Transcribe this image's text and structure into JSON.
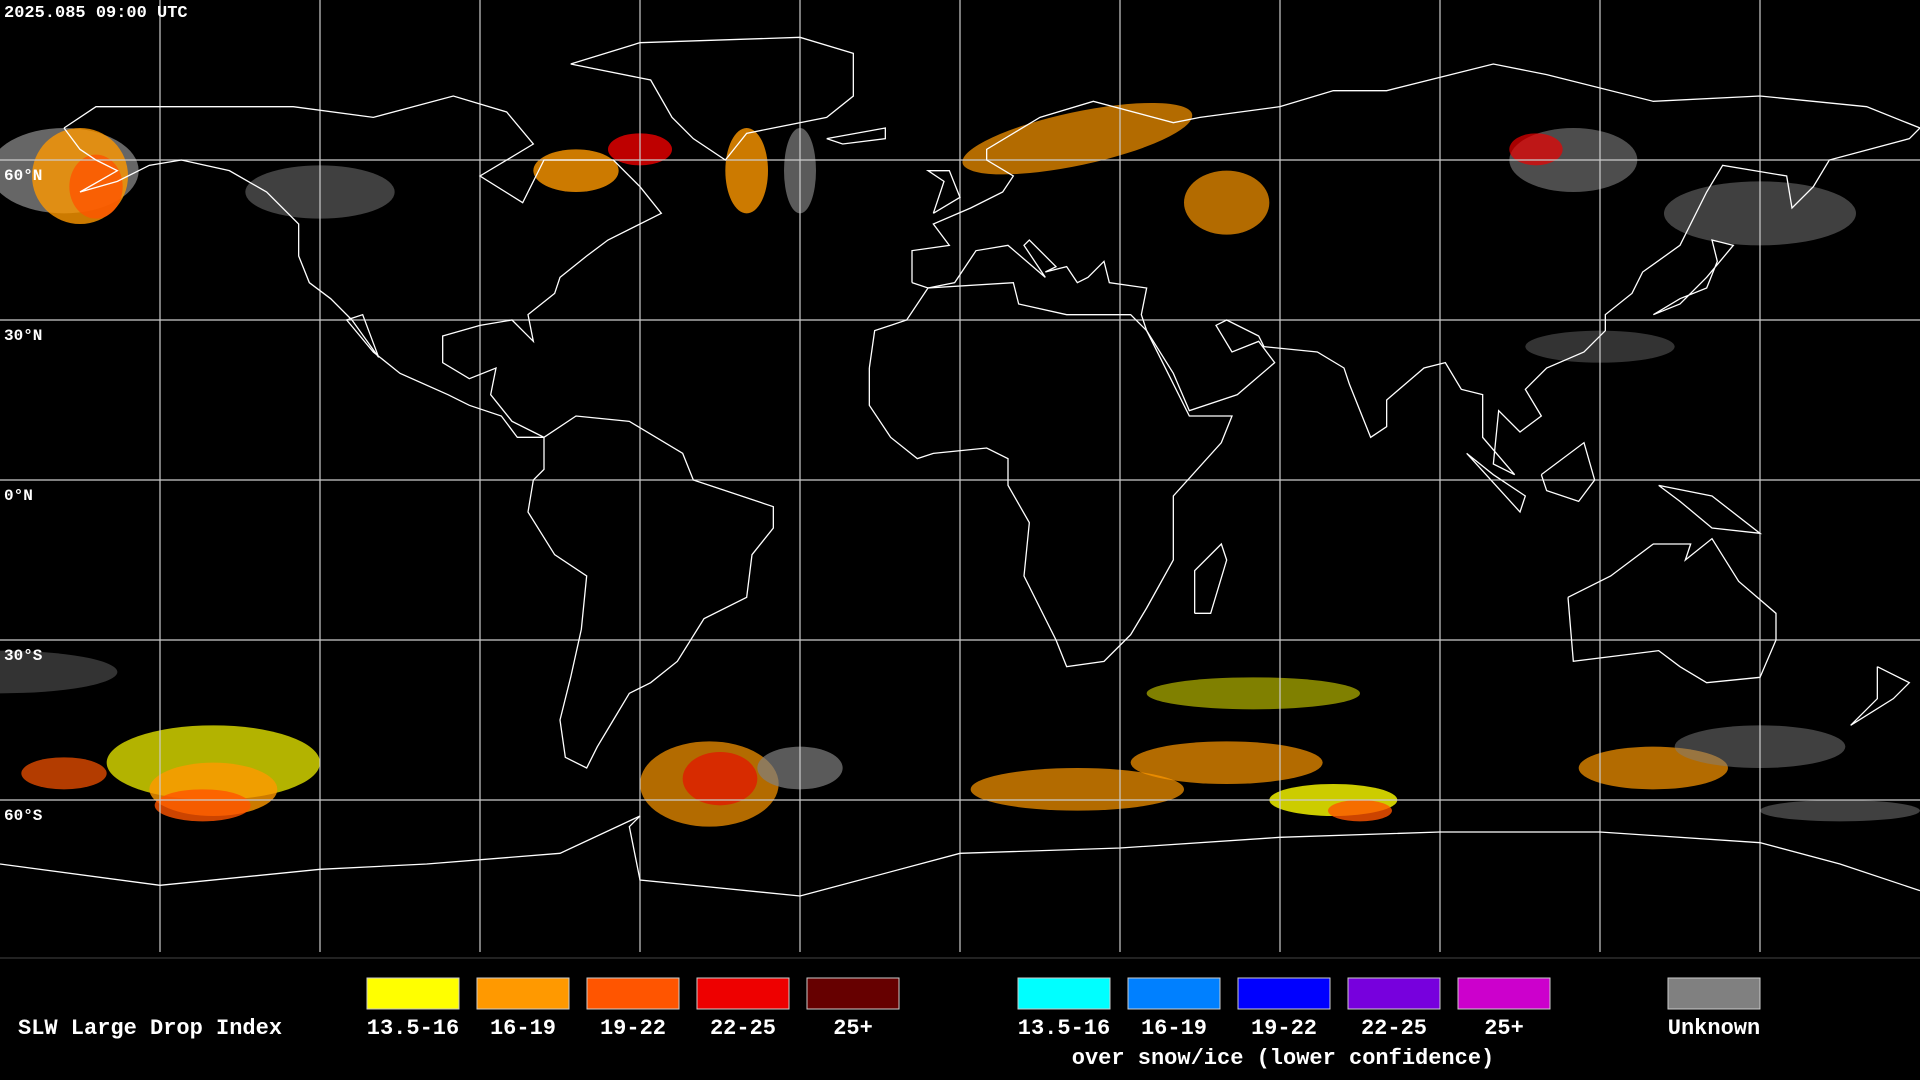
{
  "header": {
    "timestamp": "2025.085 09:00 UTC"
  },
  "map": {
    "latitude_labels": [
      "60°N",
      "30°N",
      "0°N",
      "30°S",
      "60°S"
    ]
  },
  "legend": {
    "title": "SLW Large Drop Index",
    "items": [
      {
        "label": "13.5-16",
        "color": "#ffff00"
      },
      {
        "label": "16-19",
        "color": "#ff9900"
      },
      {
        "label": "19-22",
        "color": "#ff5500"
      },
      {
        "label": "22-25",
        "color": "#ee0000"
      },
      {
        "label": "25+",
        "color": "#660000"
      }
    ],
    "snow_ice_items": [
      {
        "label": "13.5-16",
        "color": "#00ffff"
      },
      {
        "label": "16-19",
        "color": "#0080ff"
      },
      {
        "label": "19-22",
        "color": "#0000ff"
      },
      {
        "label": "22-25",
        "color": "#7700dd"
      },
      {
        "label": "25+",
        "color": "#cc00cc"
      }
    ],
    "snow_ice_caption": "over snow/ice (lower confidence)",
    "unknown": {
      "label": "Unknown",
      "color": "#808080"
    }
  }
}
